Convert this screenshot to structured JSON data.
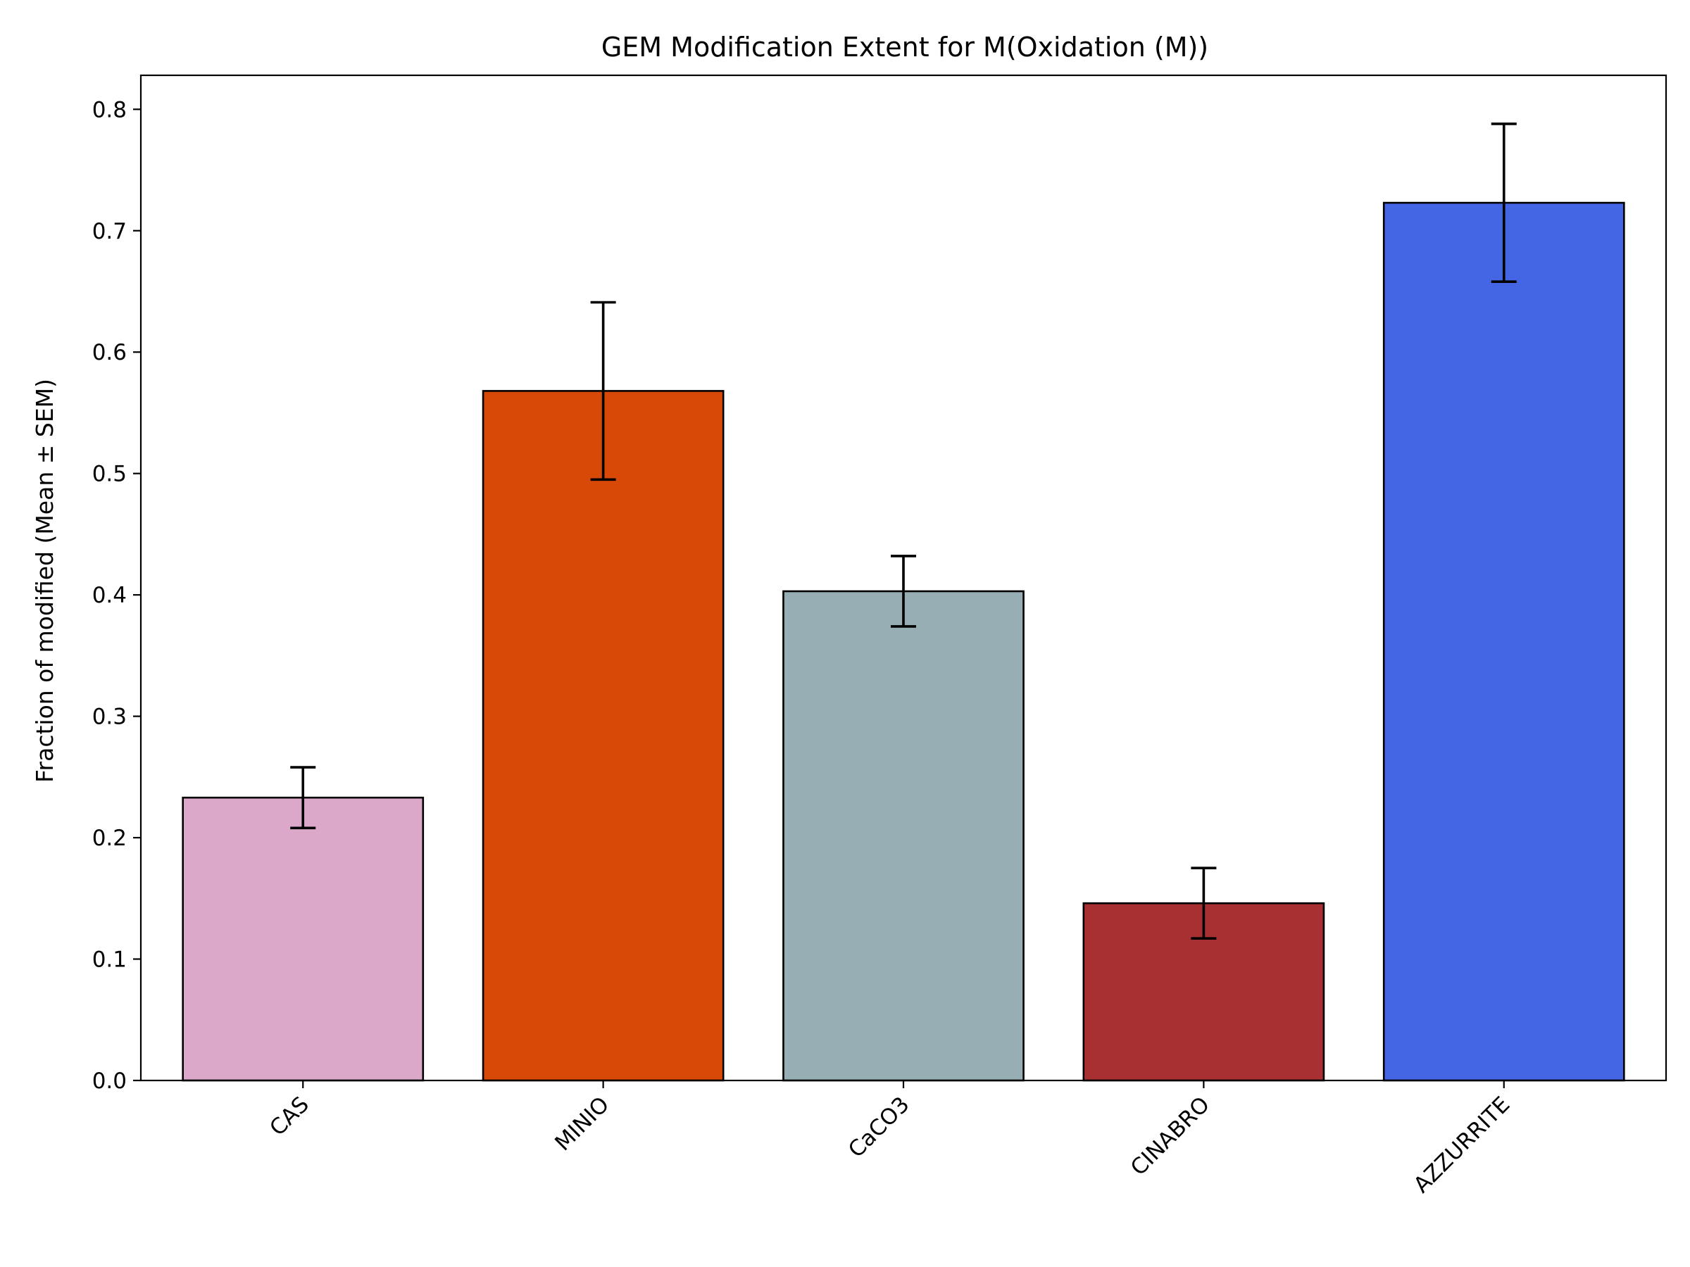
{
  "chart_data": {
    "type": "bar",
    "title": "GEM Modification Extent for M(Oxidation (M))",
    "xlabel": "",
    "ylabel": "Fraction of modified (Mean ± SEM)",
    "categories": [
      "CAS",
      "MINIO",
      "CaCO3",
      "CINABRO",
      "AZZURRITE"
    ],
    "values": [
      0.233,
      0.568,
      0.403,
      0.146,
      0.723
    ],
    "errors": [
      0.025,
      0.073,
      0.029,
      0.029,
      0.065
    ],
    "colors": [
      "#dba8ca",
      "#d84807",
      "#96aeb4",
      "#a83033",
      "#4466e4"
    ],
    "ylim": [
      0.0,
      0.828
    ],
    "yticks": [
      0.0,
      0.1,
      0.2,
      0.3,
      0.4,
      0.5,
      0.6,
      0.7,
      0.8
    ],
    "ytick_labels": [
      "0.0",
      "0.1",
      "0.2",
      "0.3",
      "0.4",
      "0.5",
      "0.6",
      "0.7",
      "0.8"
    ],
    "grid": false,
    "legend": "none"
  }
}
